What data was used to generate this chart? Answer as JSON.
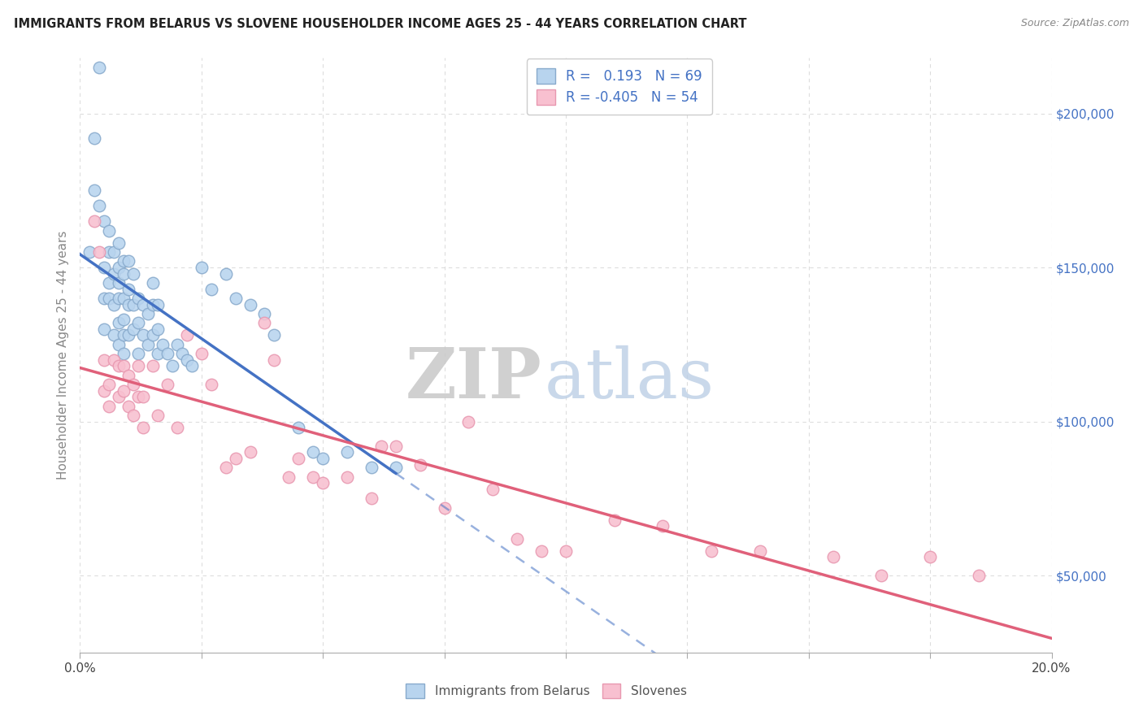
{
  "title": "IMMIGRANTS FROM BELARUS VS SLOVENE HOUSEHOLDER INCOME AGES 25 - 44 YEARS CORRELATION CHART",
  "source": "Source: ZipAtlas.com",
  "ylabel": "Householder Income Ages 25 - 44 years",
  "yticks": [
    50000,
    100000,
    150000,
    200000
  ],
  "ytick_labels": [
    "$50,000",
    "$100,000",
    "$150,000",
    "$200,000"
  ],
  "xlim": [
    0.0,
    0.2
  ],
  "ylim": [
    25000,
    218000
  ],
  "legend_r1": "0.193",
  "legend_n1": "69",
  "legend_r2": "-0.405",
  "legend_n2": "54",
  "blue_line_color": "#4472c4",
  "pink_line_color": "#e0607a",
  "blue_dot_facecolor": "#b8d4ee",
  "blue_dot_edgecolor": "#88aacc",
  "pink_dot_facecolor": "#f8c0d0",
  "pink_dot_edgecolor": "#e898b0",
  "grid_color": "#dddddd",
  "blue_scatter_x": [
    0.002,
    0.003,
    0.003,
    0.004,
    0.004,
    0.005,
    0.005,
    0.005,
    0.005,
    0.006,
    0.006,
    0.006,
    0.006,
    0.007,
    0.007,
    0.007,
    0.007,
    0.008,
    0.008,
    0.008,
    0.008,
    0.008,
    0.008,
    0.009,
    0.009,
    0.009,
    0.009,
    0.009,
    0.009,
    0.01,
    0.01,
    0.01,
    0.01,
    0.011,
    0.011,
    0.011,
    0.012,
    0.012,
    0.012,
    0.013,
    0.013,
    0.014,
    0.014,
    0.015,
    0.015,
    0.015,
    0.016,
    0.016,
    0.016,
    0.017,
    0.018,
    0.019,
    0.02,
    0.021,
    0.022,
    0.023,
    0.025,
    0.027,
    0.03,
    0.032,
    0.035,
    0.038,
    0.04,
    0.045,
    0.048,
    0.05,
    0.055,
    0.06,
    0.065
  ],
  "blue_scatter_y": [
    155000,
    192000,
    175000,
    215000,
    170000,
    165000,
    150000,
    140000,
    130000,
    162000,
    155000,
    145000,
    140000,
    155000,
    148000,
    138000,
    128000,
    158000,
    150000,
    145000,
    140000,
    132000,
    125000,
    152000,
    148000,
    140000,
    133000,
    128000,
    122000,
    152000,
    143000,
    138000,
    128000,
    148000,
    138000,
    130000,
    140000,
    132000,
    122000,
    138000,
    128000,
    135000,
    125000,
    145000,
    138000,
    128000,
    138000,
    130000,
    122000,
    125000,
    122000,
    118000,
    125000,
    122000,
    120000,
    118000,
    150000,
    143000,
    148000,
    140000,
    138000,
    135000,
    128000,
    98000,
    90000,
    88000,
    90000,
    85000,
    85000
  ],
  "pink_scatter_x": [
    0.003,
    0.004,
    0.005,
    0.005,
    0.006,
    0.006,
    0.007,
    0.008,
    0.008,
    0.009,
    0.009,
    0.01,
    0.01,
    0.011,
    0.011,
    0.012,
    0.012,
    0.013,
    0.013,
    0.015,
    0.016,
    0.018,
    0.02,
    0.022,
    0.025,
    0.027,
    0.03,
    0.032,
    0.035,
    0.038,
    0.04,
    0.043,
    0.045,
    0.048,
    0.05,
    0.055,
    0.06,
    0.062,
    0.065,
    0.07,
    0.075,
    0.08,
    0.085,
    0.09,
    0.095,
    0.1,
    0.11,
    0.12,
    0.13,
    0.14,
    0.155,
    0.165,
    0.175,
    0.185
  ],
  "pink_scatter_y": [
    165000,
    155000,
    120000,
    110000,
    112000,
    105000,
    120000,
    118000,
    108000,
    118000,
    110000,
    115000,
    105000,
    112000,
    102000,
    118000,
    108000,
    108000,
    98000,
    118000,
    102000,
    112000,
    98000,
    128000,
    122000,
    112000,
    85000,
    88000,
    90000,
    132000,
    120000,
    82000,
    88000,
    82000,
    80000,
    82000,
    75000,
    92000,
    92000,
    86000,
    72000,
    100000,
    78000,
    62000,
    58000,
    58000,
    68000,
    66000,
    58000,
    58000,
    56000,
    50000,
    56000,
    50000
  ],
  "blue_regression_x0": 0.0,
  "blue_regression_x_solid_end": 0.065,
  "blue_regression_x1": 0.2,
  "pink_regression_x0": 0.0,
  "pink_regression_x1": 0.2
}
